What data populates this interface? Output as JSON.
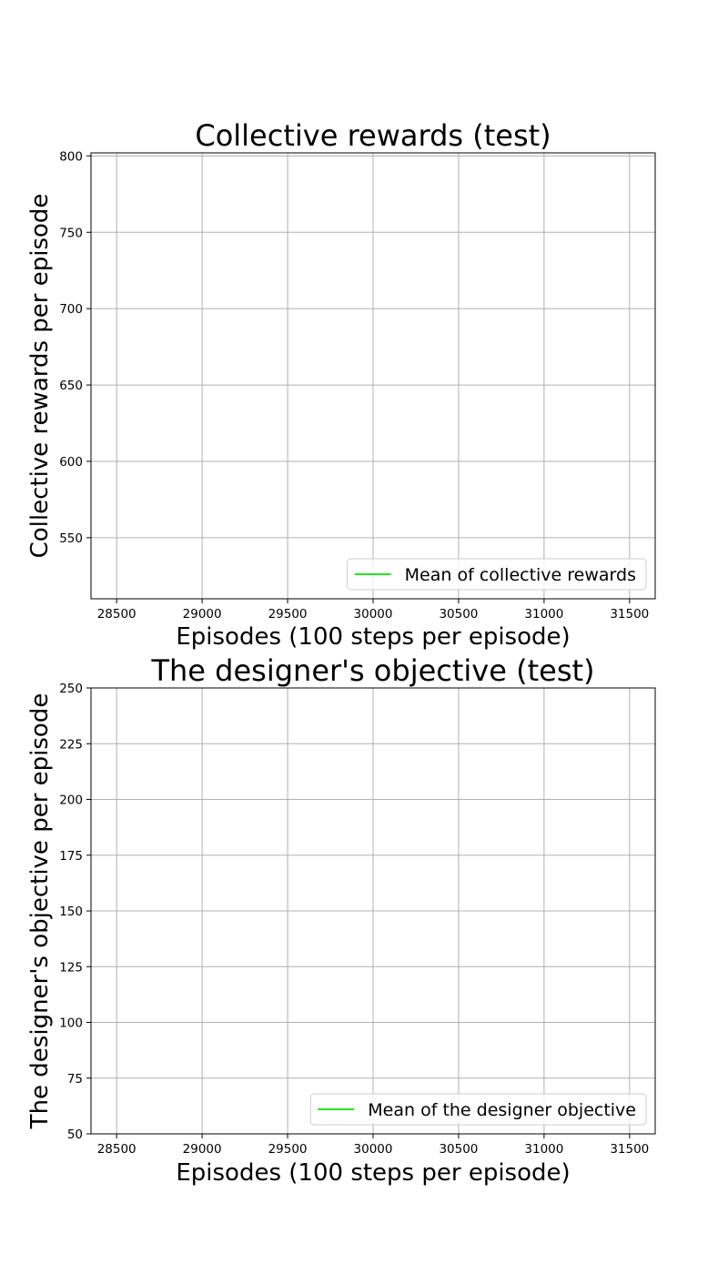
{
  "chart_data": [
    {
      "type": "line",
      "title": "Collective rewards (test)",
      "xlabel": "Episodes (100 steps per episode)",
      "ylabel": "Collective rewards per episode",
      "xlim": [
        28350,
        31650
      ],
      "ylim": [
        510,
        802
      ],
      "xticks": [
        28500,
        29000,
        29500,
        30000,
        30500,
        31000,
        31500
      ],
      "yticks": [
        550,
        600,
        650,
        700,
        750,
        800
      ],
      "grid": true,
      "legend_position": "lower-right",
      "series": [
        {
          "name": "Mean of collective rewards",
          "color": "#22e822",
          "x": [],
          "y": []
        }
      ]
    },
    {
      "type": "line",
      "title": "The designer's objective (test)",
      "xlabel": "Episodes (100 steps per episode)",
      "ylabel": "The designer's objective per episode",
      "xlim": [
        28350,
        31650
      ],
      "ylim": [
        50,
        250
      ],
      "xticks": [
        28500,
        29000,
        29500,
        30000,
        30500,
        31000,
        31500
      ],
      "yticks": [
        50,
        75,
        100,
        125,
        150,
        175,
        200,
        225,
        250
      ],
      "grid": true,
      "legend_position": "lower-right",
      "series": [
        {
          "name": "Mean of the designer objective",
          "color": "#22e822",
          "x": [],
          "y": []
        }
      ]
    }
  ]
}
